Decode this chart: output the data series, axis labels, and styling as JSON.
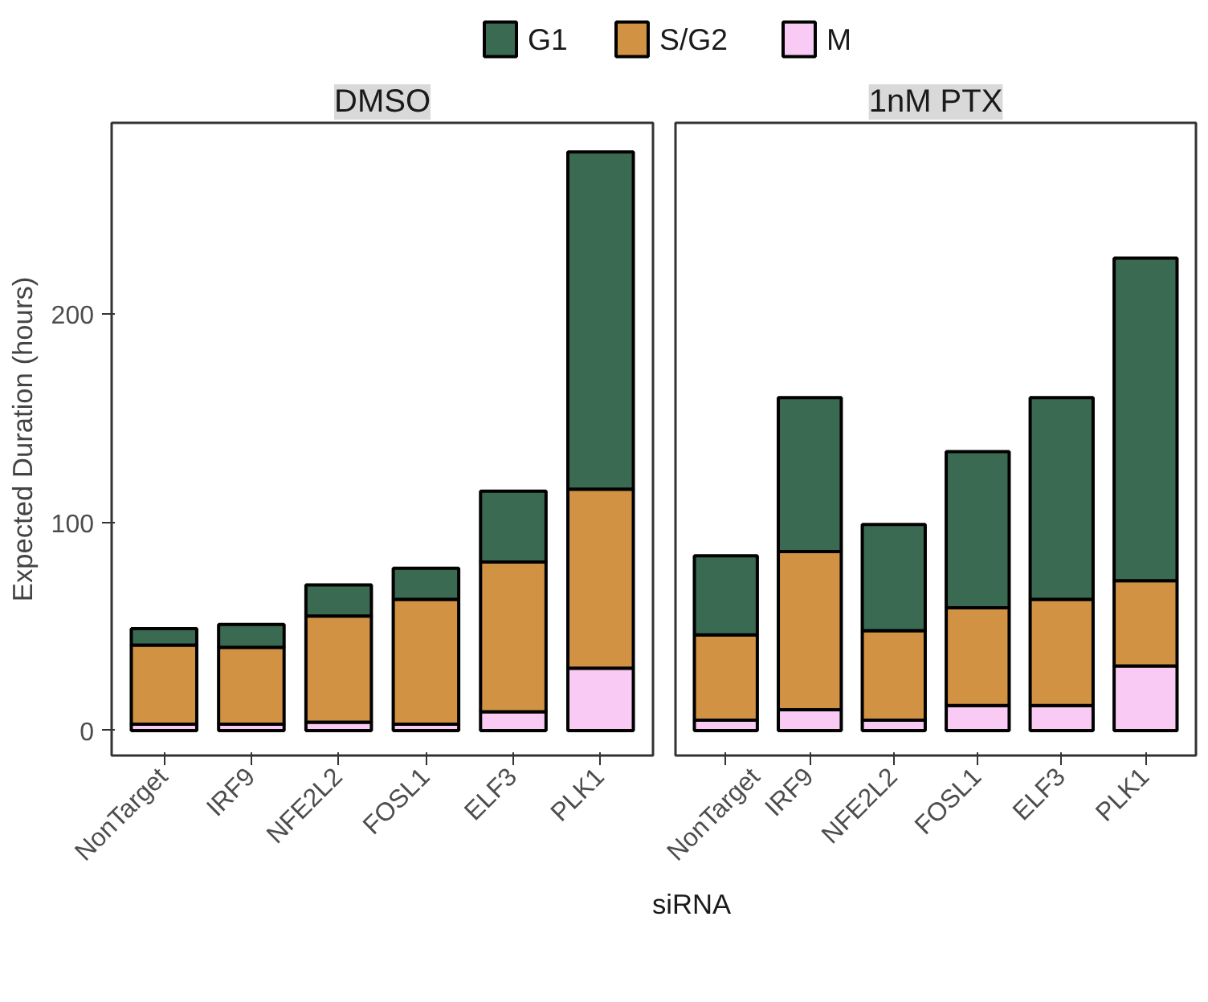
{
  "chart_data": [
    {
      "type": "bar",
      "title": "DMSO",
      "ylabel": "Expected Duration (hours)",
      "xlabel": "siRNA",
      "stacked": true,
      "legend": "top",
      "grid": false,
      "categories": [
        "NonTarget",
        "IRF9",
        "NFE2L2",
        "FOSL1",
        "ELF3",
        "PLK1"
      ],
      "ylim": [
        -12,
        292
      ],
      "yticks": [
        0,
        100,
        200
      ],
      "series": [
        {
          "name": "M",
          "color": "#f9cbf4",
          "values": [
            3,
            3,
            4,
            3,
            9,
            30
          ]
        },
        {
          "name": "S/G2",
          "color": "#d19243",
          "values": [
            38,
            37,
            51,
            60,
            72,
            86
          ]
        },
        {
          "name": "G1",
          "color": "#3b6a53",
          "values": [
            8,
            11,
            15,
            15,
            34,
            162
          ]
        }
      ]
    },
    {
      "type": "bar",
      "title": "1nM PTX",
      "stacked": true,
      "grid": false,
      "tick_labels": "x",
      "categories": [
        "NonTarget",
        "IRF9",
        "NFE2L2",
        "FOSL1",
        "ELF3",
        "PLK1"
      ],
      "ylim": [
        -12,
        292
      ],
      "yticks": [
        0,
        100,
        200
      ],
      "series": [
        {
          "color": "#f9cbf4",
          "values": [
            5,
            10,
            5,
            12,
            12,
            31
          ]
        },
        {
          "color": "#d19243",
          "values": [
            41,
            76,
            43,
            47,
            51,
            41
          ]
        },
        {
          "color": "#3b6a53",
          "values": [
            38,
            74,
            51,
            75,
            97,
            155
          ]
        }
      ]
    }
  ]
}
